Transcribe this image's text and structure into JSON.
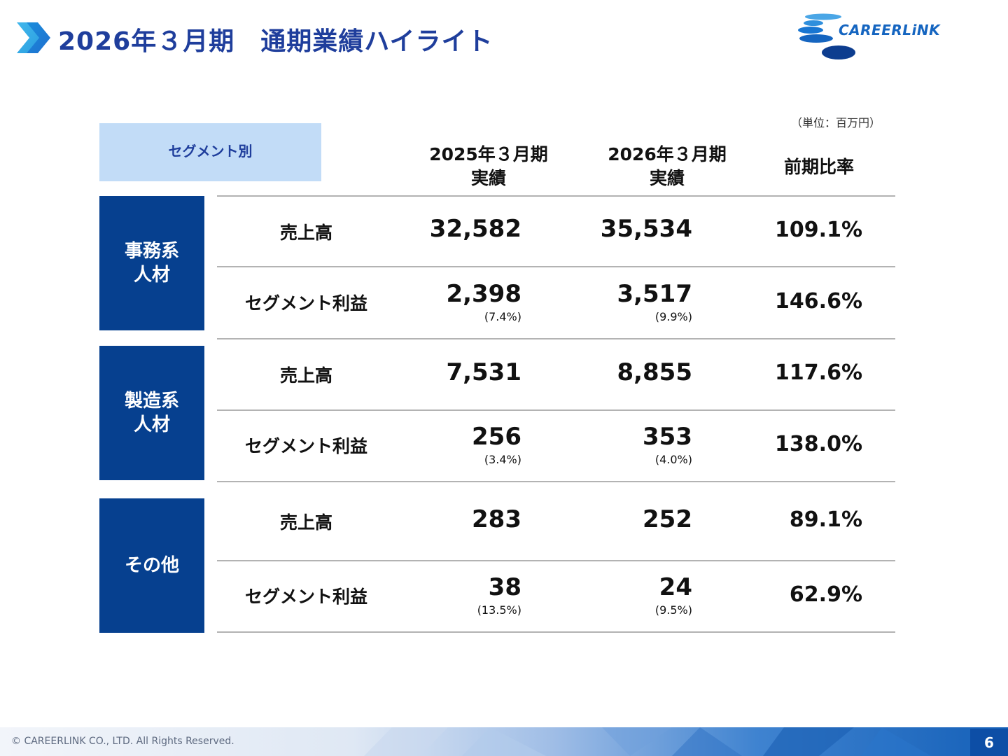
{
  "header": {
    "title": "2026年３月期　通期業績ハイライト",
    "logo_text": "CAREERLiNK"
  },
  "table": {
    "unit_note": "（単位：百万円）",
    "segment_header": "セグメント別",
    "columns": {
      "prev_line1": "2025年３月期",
      "prev_line2": "実績",
      "curr_line1": "2026年３月期",
      "curr_line2": "実績",
      "ratio": "前期比率"
    },
    "segments": [
      {
        "name_line1": "事務系",
        "name_line2": "人材",
        "sales": {
          "label": "売上高",
          "prev": "32,582",
          "curr": "35,534",
          "ratio": "109.1%"
        },
        "profit": {
          "label": "セグメント利益",
          "prev": "2,398",
          "prev_margin": "(7.4%)",
          "curr": "3,517",
          "curr_margin": "(9.9%)",
          "ratio": "146.6%"
        }
      },
      {
        "name_line1": "製造系",
        "name_line2": "人材",
        "sales": {
          "label": "売上高",
          "prev": "7,531",
          "curr": "8,855",
          "ratio": "117.6%"
        },
        "profit": {
          "label": "セグメント利益",
          "prev": "256",
          "prev_margin": "(3.4%)",
          "curr": "353",
          "curr_margin": "(4.0%)",
          "ratio": "138.0%"
        }
      },
      {
        "name_line1": "その他",
        "name_line2": "",
        "sales": {
          "label": "売上高",
          "prev": "283",
          "curr": "252",
          "ratio": "89.1%"
        },
        "profit": {
          "label": "セグメント利益",
          "prev": "38",
          "prev_margin": "(13.5%)",
          "curr": "24",
          "curr_margin": "(9.5%)",
          "ratio": "62.9%"
        }
      }
    ]
  },
  "footer": {
    "copyright": "© CAREERLINK CO., LTD. All Rights Reserved.",
    "page_number": "6"
  },
  "colors": {
    "title": "#1f3e9c",
    "segment_block": "#06408f",
    "segment_header_bg": "#c2dcf7",
    "logo_blue": "#1565c0",
    "logo_dark": "#0d3d8f",
    "logo_light": "#4aa6e6"
  }
}
